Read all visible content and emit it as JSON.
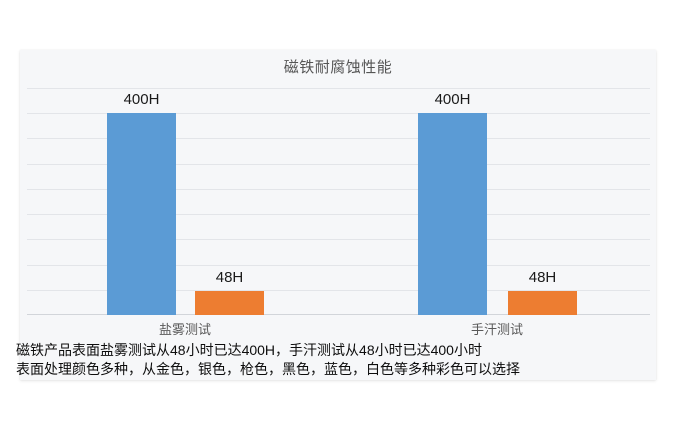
{
  "title": "磁铁耐腐蚀性能",
  "chart_data": {
    "type": "bar",
    "title": "磁铁耐腐蚀性能",
    "categories": [
      "盐雾测试",
      "手汗测试"
    ],
    "series": [
      {
        "name": "400H",
        "color": "#5B9BD5",
        "values": [
          400,
          400
        ],
        "labels": [
          "400H",
          "400H"
        ]
      },
      {
        "name": "48H",
        "color": "#ED7D31",
        "values": [
          48,
          48
        ],
        "labels": [
          "48H",
          "48H"
        ]
      }
    ],
    "xlabel": "",
    "ylabel": "",
    "ylim": [
      0,
      450
    ],
    "gridline_interval": 50,
    "grid": true,
    "legend_position": "none",
    "unit": "H"
  },
  "footer": {
    "line1": "磁铁产品表面盐雾测试从48小时已达400H，手汗测试从48小时已达400小时",
    "line2": "表面处理颜色多种，从金色，银色，枪色，黑色，蓝色，白色等多种彩色可以选择"
  },
  "colors": {
    "page_background": "#ffffff",
    "panel_background": "#f6f7f9",
    "bar_blue": "#5B9BD5",
    "bar_orange": "#ED7D31",
    "gridline": "#e3e5e9",
    "axis_baseline": "#d2d5da",
    "title_text": "#555555",
    "category_text": "#595959",
    "label_text": "#1a1a1a",
    "footer_text": "#0d0d0d"
  }
}
